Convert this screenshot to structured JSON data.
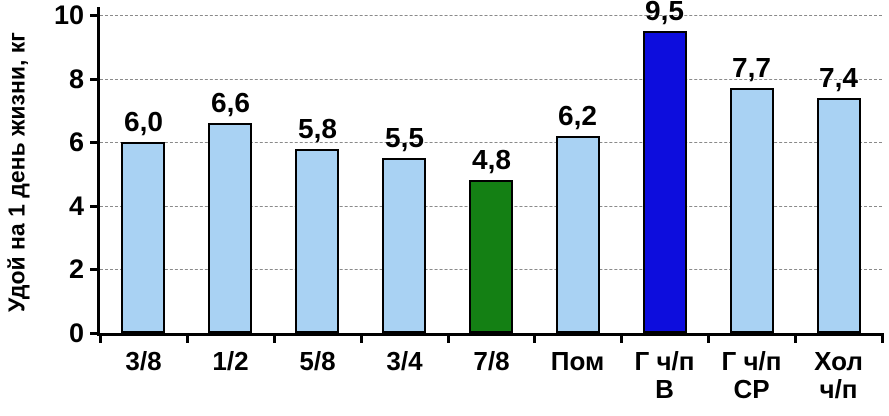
{
  "chart_data": {
    "type": "bar",
    "title": "",
    "ylabel": "Удой на 1 день жизни, кг",
    "xlabel": "",
    "ylim": [
      0,
      10
    ],
    "yticks": [
      0,
      2,
      4,
      6,
      8,
      10
    ],
    "grid": "horizontal dashed at each y tick",
    "legend": "none",
    "categories": [
      "3/8",
      "1/2",
      "5/8",
      "3/4",
      "7/8",
      "Пом",
      "Г ч/п\nВ",
      "Г ч/п\nСР",
      "Хол\nч/п"
    ],
    "values": [
      6.0,
      6.6,
      5.8,
      5.5,
      4.8,
      6.2,
      9.5,
      7.7,
      7.4
    ],
    "value_labels": [
      "6,0",
      "6,6",
      "5,8",
      "5,5",
      "4,8",
      "6,2",
      "9,5",
      "7,7",
      "7,4"
    ],
    "bar_colors": [
      "#A9D2F3",
      "#A9D2F3",
      "#A9D2F3",
      "#A9D2F3",
      "#148014",
      "#A9D2F3",
      "#0D0DDD",
      "#A9D2F3",
      "#A9D2F3"
    ],
    "bar_border_color": "#000000",
    "axis_color": "#000000",
    "grid_color": "#8a8a8a",
    "background_color": "#ffffff"
  }
}
